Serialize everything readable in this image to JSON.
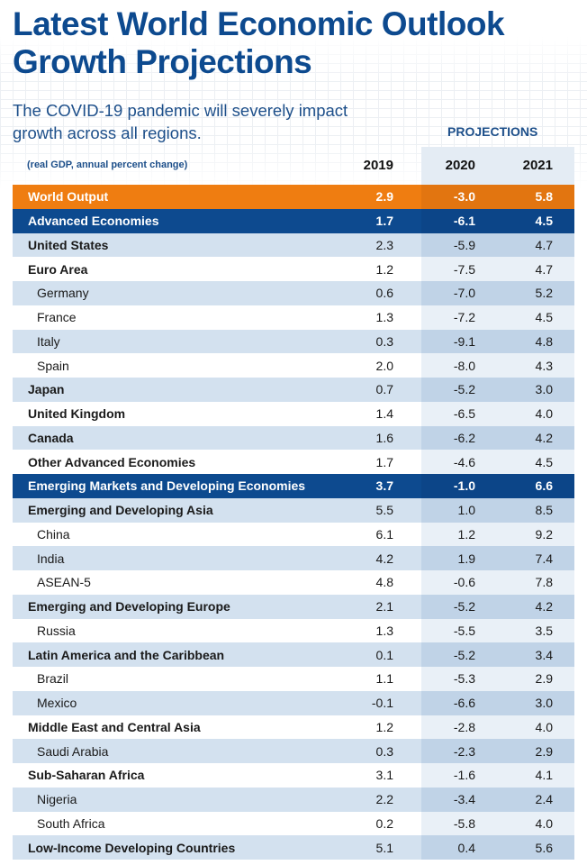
{
  "title": "Latest World Economic Outlook Growth Projections",
  "subtitle": "The COVID-19 pandemic will severely impact growth across all regions.",
  "projections_label": "PROJECTIONS",
  "unit_label": "(real GDP, annual percent change)",
  "years": [
    "2019",
    "2020",
    "2021"
  ],
  "colors": {
    "title": "#0d4a8f",
    "world_band": "#ef7d11",
    "group_band": "#0d4a8f",
    "stripe": "#d3e1ef"
  },
  "rows": [
    {
      "name": "World Output",
      "v": [
        "2.9",
        "-3.0",
        "5.8"
      ],
      "style": "orange"
    },
    {
      "name": "Advanced Economies",
      "v": [
        "1.7",
        "-6.1",
        "4.5"
      ],
      "style": "navy"
    },
    {
      "name": "United States",
      "v": [
        "2.3",
        "-5.9",
        "4.7"
      ]
    },
    {
      "name": "Euro Area",
      "v": [
        "1.2",
        "-7.5",
        "4.7"
      ]
    },
    {
      "name": "Germany",
      "v": [
        "0.6",
        "-7.0",
        "5.2"
      ],
      "indent": true
    },
    {
      "name": "France",
      "v": [
        "1.3",
        "-7.2",
        "4.5"
      ],
      "indent": true
    },
    {
      "name": "Italy",
      "v": [
        "0.3",
        "-9.1",
        "4.8"
      ],
      "indent": true
    },
    {
      "name": "Spain",
      "v": [
        "2.0",
        "-8.0",
        "4.3"
      ],
      "indent": true
    },
    {
      "name": "Japan",
      "v": [
        "0.7",
        "-5.2",
        "3.0"
      ]
    },
    {
      "name": "United Kingdom",
      "v": [
        "1.4",
        "-6.5",
        "4.0"
      ]
    },
    {
      "name": "Canada",
      "v": [
        "1.6",
        "-6.2",
        "4.2"
      ]
    },
    {
      "name": "Other Advanced Economies",
      "v": [
        "1.7",
        "-4.6",
        "4.5"
      ]
    },
    {
      "name": "Emerging Markets and Developing Economies",
      "v": [
        "3.7",
        "-1.0",
        "6.6"
      ],
      "style": "navy"
    },
    {
      "name": "Emerging and Developing Asia",
      "v": [
        "5.5",
        "1.0",
        "8.5"
      ]
    },
    {
      "name": "China",
      "v": [
        "6.1",
        "1.2",
        "9.2"
      ],
      "indent": true
    },
    {
      "name": "India",
      "v": [
        "4.2",
        "1.9",
        "7.4"
      ],
      "indent": true
    },
    {
      "name": "ASEAN-5",
      "v": [
        "4.8",
        "-0.6",
        "7.8"
      ],
      "indent": true
    },
    {
      "name": "Emerging and Developing Europe",
      "v": [
        "2.1",
        "-5.2",
        "4.2"
      ]
    },
    {
      "name": "Russia",
      "v": [
        "1.3",
        "-5.5",
        "3.5"
      ],
      "indent": true
    },
    {
      "name": "Latin America and the Caribbean",
      "v": [
        "0.1",
        "-5.2",
        "3.4"
      ]
    },
    {
      "name": "Brazil",
      "v": [
        "1.1",
        "-5.3",
        "2.9"
      ],
      "indent": true
    },
    {
      "name": "Mexico",
      "v": [
        "-0.1",
        "-6.6",
        "3.0"
      ],
      "indent": true
    },
    {
      "name": "Middle East and Central Asia",
      "v": [
        "1.2",
        "-2.8",
        "4.0"
      ]
    },
    {
      "name": "Saudi Arabia",
      "v": [
        "0.3",
        "-2.3",
        "2.9"
      ],
      "indent": true
    },
    {
      "name": "Sub-Saharan Africa",
      "v": [
        "3.1",
        "-1.6",
        "4.1"
      ]
    },
    {
      "name": "Nigeria",
      "v": [
        "2.2",
        "-3.4",
        "2.4"
      ],
      "indent": true
    },
    {
      "name": "South Africa",
      "v": [
        "0.2",
        "-5.8",
        "4.0"
      ],
      "indent": true
    },
    {
      "name": "Low-Income Developing Countries",
      "v": [
        "5.1",
        "0.4",
        "5.6"
      ]
    }
  ]
}
